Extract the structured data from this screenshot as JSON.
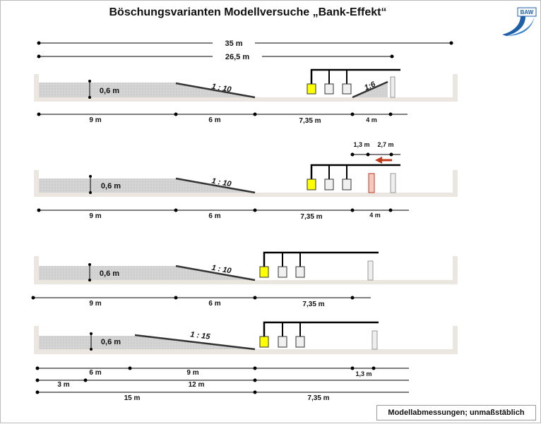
{
  "title": "Böschungsvarianten Modellversuche „Bank-Effekt“",
  "logo": {
    "text": "BAW",
    "icon": "baw-wave-logo-icon",
    "color": "#1f5fa8"
  },
  "note": "Modellabmessungen; unmaßstäblich",
  "colors": {
    "flume": "#ebe7e0",
    "fill": "#d3d3d3",
    "yellow": "#ffff00",
    "red": "#c0391a",
    "pink": "#f3c9c0"
  },
  "overall": {
    "total": "35 m",
    "flume": "26,5 m"
  },
  "variants": [
    {
      "depth": "0,6 m",
      "slope": "1 : 10",
      "bank_slope": "1:6",
      "dims": [
        "9 m",
        "6 m",
        "7,35 m",
        "4 m"
      ]
    },
    {
      "depth": "0,6 m",
      "slope": "1 : 10",
      "dims": [
        "9 m",
        "6 m",
        "7,35 m",
        "4 m"
      ],
      "top_dims": [
        "1,3 m",
        "2,7 m"
      ]
    },
    {
      "depth": "0,6 m",
      "slope": "1 : 10",
      "dims": [
        "9 m",
        "6 m",
        "7,35 m"
      ]
    },
    {
      "depth": "0,6 m",
      "slope": "1 : 15",
      "dims": [
        "6 m",
        "9 m",
        "1,3 m"
      ],
      "dims2": [
        "3 m",
        "12 m"
      ],
      "dims3": [
        "15 m",
        "7,35 m"
      ]
    }
  ]
}
